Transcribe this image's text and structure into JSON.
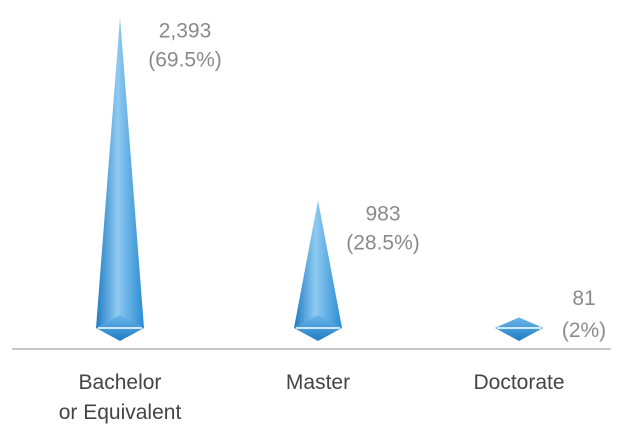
{
  "chart_data": {
    "type": "bar",
    "shape": "cone",
    "categories": [
      [
        "Bachelor",
        "or Equivalent"
      ],
      [
        "Master"
      ],
      [
        "Doctorate"
      ]
    ],
    "values": [
      2393,
      983,
      81
    ],
    "value_labels": [
      "2,393",
      "983",
      "81"
    ],
    "percent_labels": [
      "(69.5%)",
      "(28.5%)",
      "(2%)"
    ],
    "ylim": [
      0,
      2450
    ],
    "grid": false,
    "legend": "none",
    "colors": {
      "bar_light": "#8fcaf0",
      "bar_mid": "#3a9ee0",
      "bar_dark": "#1f7cc4",
      "axis": "#c8c8c8",
      "value_text": "#8a8a8a",
      "category_text": "#444444"
    }
  }
}
